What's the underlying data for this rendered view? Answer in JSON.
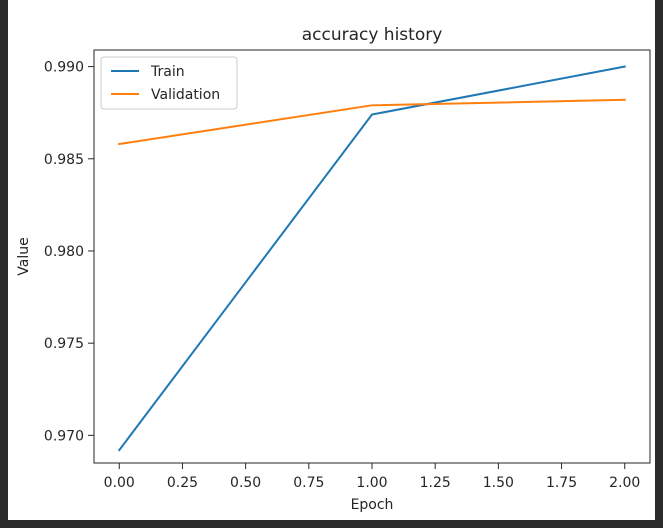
{
  "chart_data": {
    "type": "line",
    "title": "accuracy history",
    "xlabel": "Epoch",
    "ylabel": "Value",
    "x": [
      0,
      1,
      2
    ],
    "series": [
      {
        "name": "Train",
        "values": [
          0.9692,
          0.9874,
          0.99
        ],
        "color": "#1f77b4"
      },
      {
        "name": "Validation",
        "values": [
          0.9858,
          0.9879,
          0.9882
        ],
        "color": "#ff7f0e"
      }
    ],
    "xlim": [
      -0.1,
      2.1
    ],
    "ylim": [
      0.9685,
      0.9909
    ],
    "xticks": [
      0.0,
      0.25,
      0.5,
      0.75,
      1.0,
      1.25,
      1.5,
      1.75,
      2.0
    ],
    "xtick_labels": [
      "0.00",
      "0.25",
      "0.50",
      "0.75",
      "1.00",
      "1.25",
      "1.50",
      "1.75",
      "2.00"
    ],
    "yticks": [
      0.97,
      0.975,
      0.98,
      0.985,
      0.99
    ],
    "ytick_labels": [
      "0.970",
      "0.975",
      "0.980",
      "0.985",
      "0.990"
    ],
    "legend": {
      "placement": "top-left"
    },
    "grid": false
  }
}
